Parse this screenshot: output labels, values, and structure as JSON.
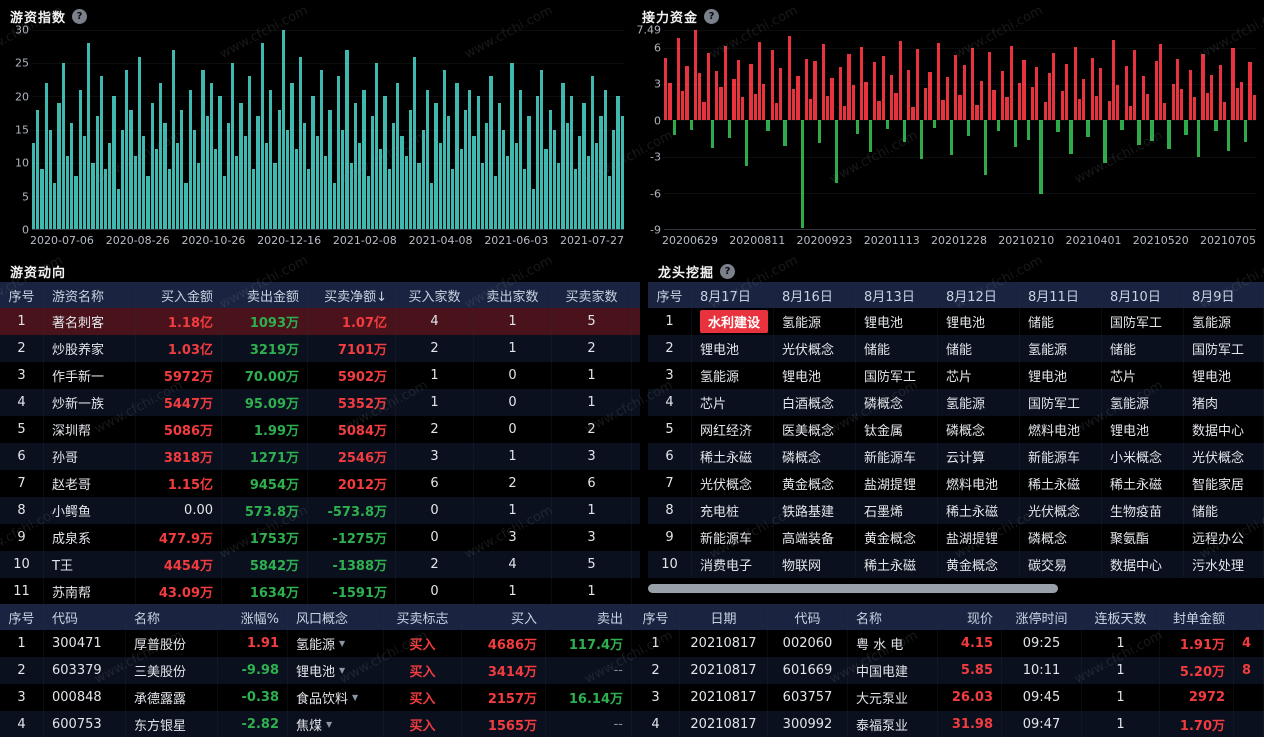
{
  "watermark": "www.cfchi.com",
  "colors": {
    "up_red": "#f23c3f",
    "down_green": "#2eb050",
    "teal_bar": "#3fb8b0",
    "header_bg": "#1a2440",
    "selected_row_bg": "#4a121a",
    "highlight_cell_bg": "#e8333f"
  },
  "charts": {
    "hot_money_index": {
      "title": "游资指数",
      "chart_data": {
        "type": "bar",
        "title": "游资指数",
        "xlabel": "",
        "ylabel": "",
        "ylim": [
          0,
          30
        ],
        "yticks": [
          30,
          25,
          20,
          15,
          10,
          5,
          0
        ],
        "xticks": [
          "2020-07-06",
          "2020-08-26",
          "2020-10-26",
          "2020-12-16",
          "2021-02-08",
          "2021-04-08",
          "2021-06-03",
          "2021-07-27"
        ],
        "bar_color": "#3fb8b0",
        "grid": false,
        "values": [
          13,
          18,
          9,
          22,
          15,
          7,
          19,
          25,
          11,
          16,
          8,
          21,
          14,
          28,
          10,
          17,
          23,
          9,
          13,
          20,
          6,
          15,
          24,
          18,
          11,
          26,
          14,
          8,
          19,
          12,
          22,
          16,
          9,
          27,
          13,
          18,
          7,
          21,
          15,
          10,
          24,
          17,
          22,
          12,
          20,
          8,
          16,
          25,
          11,
          19,
          14,
          23,
          9,
          17,
          28,
          13,
          21,
          10,
          18,
          30,
          15,
          22,
          12,
          26,
          16,
          9,
          20,
          14,
          24,
          11,
          18,
          7,
          23,
          15,
          27,
          10,
          19,
          13,
          21,
          8,
          17,
          25,
          12,
          20,
          9,
          16,
          22,
          14,
          11,
          18,
          26,
          10,
          15,
          21,
          7,
          19,
          13,
          24,
          17,
          9,
          22,
          12,
          18,
          21,
          14,
          20,
          10,
          16,
          23,
          8,
          19,
          15,
          11,
          25,
          13,
          21,
          9,
          17,
          6,
          20,
          24,
          12,
          18,
          15,
          10,
          22,
          16,
          20,
          9,
          14,
          19,
          11,
          23,
          13,
          17,
          21,
          8,
          15,
          20,
          17
        ]
      }
    },
    "relay_funds": {
      "title": "接力资金",
      "chart_data": {
        "type": "bar",
        "title": "接力资金",
        "xlabel": "",
        "ylabel": "",
        "ylim": [
          -9,
          7.49
        ],
        "yticks": [
          7.49,
          6,
          3,
          0,
          -3,
          -6,
          -9
        ],
        "xticks": [
          "20200629",
          "20200811",
          "20200923",
          "20201113",
          "20201228",
          "20210210",
          "20210401",
          "20210520",
          "20210705"
        ],
        "positive_color": "#e8333f",
        "negative_color": "#2faa4a",
        "grid": false,
        "values": [
          5.2,
          3.1,
          -1.2,
          6.8,
          2.4,
          4.5,
          -0.8,
          7.49,
          3.9,
          1.5,
          5.6,
          -2.3,
          4.1,
          2.8,
          6.2,
          -1.5,
          3.4,
          5.0,
          1.9,
          -3.8,
          4.7,
          2.2,
          6.5,
          3.0,
          -0.9,
          5.8,
          1.4,
          4.3,
          -2.1,
          7.0,
          2.6,
          3.7,
          -8.9,
          5.1,
          1.8,
          4.9,
          -1.9,
          6.3,
          2.0,
          3.5,
          -5.2,
          4.4,
          1.2,
          5.5,
          2.9,
          -1.1,
          6.1,
          3.2,
          -2.6,
          4.8,
          1.6,
          5.3,
          -0.7,
          3.8,
          2.3,
          6.6,
          -1.8,
          4.2,
          1.1,
          5.9,
          -3.2,
          2.7,
          4.0,
          -0.6,
          6.4,
          1.7,
          3.6,
          -2.9,
          5.4,
          2.1,
          4.6,
          -1.3,
          6.0,
          1.3,
          3.3,
          -4.5,
          5.7,
          2.5,
          -0.9,
          4.1,
          1.9,
          6.2,
          -2.2,
          3.1,
          5.0,
          -1.6,
          2.8,
          4.4,
          -6.1,
          1.5,
          3.9,
          5.6,
          -1.0,
          2.4,
          4.7,
          -2.8,
          6.1,
          1.8,
          3.4,
          -1.4,
          5.2,
          2.0,
          4.3,
          -3.5,
          1.6,
          6.7,
          2.9,
          -0.8,
          4.5,
          1.2,
          5.8,
          -2.0,
          3.7,
          2.2,
          -1.7,
          4.9,
          6.3,
          1.4,
          -2.4,
          3.0,
          5.1,
          2.6,
          -1.2,
          4.2,
          1.9,
          -3.0,
          5.5,
          2.3,
          3.8,
          -0.9,
          4.6,
          1.5,
          -2.5,
          6.0,
          2.7,
          3.2,
          -1.8,
          4.8,
          2.1
        ]
      }
    }
  },
  "tables": {
    "hot_money_moves": {
      "title": "游资动向",
      "columns": [
        "序号",
        "游资名称",
        "买入金额",
        "卖出金额",
        "买卖净额↓",
        "买入家数",
        "卖出家数",
        "买卖家数"
      ],
      "selected_row": 0,
      "rows": [
        [
          "1",
          "著名刺客",
          "1.18亿",
          "1093万",
          "1.07亿",
          "4",
          "1",
          "5"
        ],
        [
          "2",
          "炒股养家",
          "1.03亿",
          "3219万",
          "7101万",
          "2",
          "1",
          "2"
        ],
        [
          "3",
          "作手新一",
          "5972万",
          "70.00万",
          "5902万",
          "1",
          "0",
          "1"
        ],
        [
          "4",
          "炒新一族",
          "5447万",
          "95.09万",
          "5352万",
          "1",
          "0",
          "1"
        ],
        [
          "5",
          "深圳帮",
          "5086万",
          "1.99万",
          "5084万",
          "2",
          "0",
          "2"
        ],
        [
          "6",
          "孙哥",
          "3818万",
          "1271万",
          "2546万",
          "3",
          "1",
          "3"
        ],
        [
          "7",
          "赵老哥",
          "1.15亿",
          "9454万",
          "2012万",
          "6",
          "2",
          "6"
        ],
        [
          "8",
          "小鳄鱼",
          "0.00",
          "573.8万",
          "-573.8万",
          "0",
          "1",
          "1"
        ],
        [
          "9",
          "成泉系",
          "477.9万",
          "1753万",
          "-1275万",
          "0",
          "3",
          "3"
        ],
        [
          "10",
          "T王",
          "4454万",
          "5842万",
          "-1388万",
          "2",
          "4",
          "5"
        ],
        [
          "11",
          "苏南帮",
          "43.09万",
          "1634万",
          "-1591万",
          "0",
          "1",
          "1"
        ]
      ]
    },
    "leader_mining": {
      "title": "龙头挖掘",
      "columns": [
        "序号",
        "8月17日",
        "8月16日",
        "8月13日",
        "8月12日",
        "8月11日",
        "8月10日",
        "8月9日"
      ],
      "rows": [
        [
          "1",
          {
            "v": "水利建设",
            "hl": true
          },
          "氢能源",
          "锂电池",
          "锂电池",
          "储能",
          "国防军工",
          "氢能源"
        ],
        [
          "2",
          "锂电池",
          "光伏概念",
          "储能",
          "储能",
          "氢能源",
          "储能",
          "国防军工"
        ],
        [
          "3",
          "氢能源",
          "锂电池",
          "国防军工",
          "芯片",
          "锂电池",
          "芯片",
          "锂电池"
        ],
        [
          "4",
          "芯片",
          "白酒概念",
          "磷概念",
          "氢能源",
          "国防军工",
          "氢能源",
          "猪肉"
        ],
        [
          "5",
          "网红经济",
          "医美概念",
          "钛金属",
          "磷概念",
          "燃料电池",
          "锂电池",
          "数据中心"
        ],
        [
          "6",
          "稀土永磁",
          "磷概念",
          "新能源车",
          "云计算",
          "新能源车",
          "小米概念",
          "光伏概念"
        ],
        [
          "7",
          "光伏概念",
          "黄金概念",
          "盐湖提锂",
          "燃料电池",
          "稀土永磁",
          "稀土永磁",
          "智能家居"
        ],
        [
          "8",
          "充电桩",
          "铁路基建",
          "石墨烯",
          "稀土永磁",
          "光伏概念",
          "生物疫苗",
          "储能"
        ],
        [
          "9",
          "新能源车",
          "高端装备",
          "黄金概念",
          "盐湖提锂",
          "磷概念",
          "聚氨酯",
          "远程办公"
        ],
        [
          "10",
          "消费电子",
          "物联网",
          "稀土永磁",
          "黄金概念",
          "碳交易",
          "数据中心",
          "污水处理"
        ]
      ]
    },
    "net_buy_stocks": {
      "columns": [
        "序号",
        "代码",
        "名称",
        "涨幅%",
        "风口概念",
        "买卖标志",
        "买入",
        "卖出"
      ],
      "rows": [
        [
          "1",
          "300471",
          "厚普股份",
          "1.91",
          {
            "v": "氢能源",
            "caret": true
          },
          "买入",
          "4686万",
          "117.4万"
        ],
        [
          "2",
          "603379",
          "三美股份",
          "-9.98",
          {
            "v": "锂电池",
            "caret": true
          },
          "买入",
          "3414万",
          "--"
        ],
        [
          "3",
          "000848",
          "承德露露",
          "-0.38",
          {
            "v": "食品饮料",
            "caret": true
          },
          "买入",
          "2157万",
          "16.14万"
        ],
        [
          "4",
          "600753",
          "东方银星",
          "-2.82",
          {
            "v": "焦煤",
            "caret": true
          },
          "买入",
          "1565万",
          "--"
        ]
      ]
    },
    "limit_up_stocks": {
      "columns": [
        "序号",
        "日期",
        "代码",
        "名称",
        "现价",
        "涨停时间",
        "连板天数",
        "封单金额",
        ""
      ],
      "rows": [
        [
          "1",
          "20210817",
          "002060",
          "粤 水 电",
          "4.15",
          "09:25",
          "1",
          "1.91万",
          "4"
        ],
        [
          "2",
          "20210817",
          "601669",
          "中国电建",
          "5.85",
          "10:11",
          "1",
          "5.20万",
          "8"
        ],
        [
          "3",
          "20210817",
          "603757",
          "大元泵业",
          "26.03",
          "09:45",
          "1",
          "2972",
          ""
        ],
        [
          "4",
          "20210817",
          "300992",
          "泰福泵业",
          "31.98",
          "09:47",
          "1",
          "1.70万",
          ""
        ]
      ]
    }
  }
}
